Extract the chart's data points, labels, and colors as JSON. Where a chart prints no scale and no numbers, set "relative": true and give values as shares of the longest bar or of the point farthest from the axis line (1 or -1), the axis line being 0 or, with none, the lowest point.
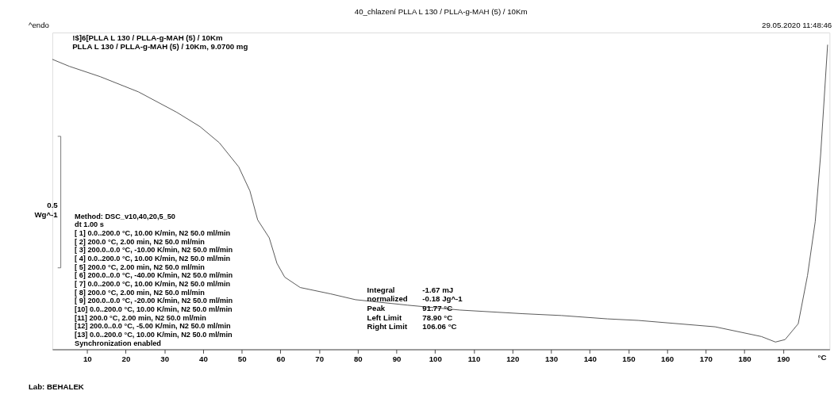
{
  "chart_data": {
    "type": "line",
    "title": "40_chlazení PLLA L 130 / PLLA-g-MAH (5) / 10Km",
    "ylabel": "^endo",
    "xlabel": "°C",
    "relative": true,
    "x": [
      1,
      5.4,
      13.4,
      23.3,
      33.2,
      39.2,
      44.2,
      49.2,
      52.1,
      54.1,
      57.1,
      59.1,
      61.1,
      65.1,
      73.0,
      79.4,
      92.9,
      106.4,
      122.7,
      132.7,
      144.6,
      152.5,
      172.4,
      184.4,
      188.0,
      190.5,
      193.9,
      196.3,
      198.3,
      199.7,
      201.5
    ],
    "series": [
      {
        "color": "#555555",
        "values": [
          0.952,
          0.929,
          0.895,
          0.845,
          0.778,
          0.731,
          0.678,
          0.599,
          0.52,
          0.425,
          0.366,
          0.282,
          0.237,
          0.203,
          0.182,
          0.163,
          0.145,
          0.129,
          0.117,
          0.111,
          0.1,
          0.095,
          0.074,
          0.042,
          0.024,
          0.032,
          0.084,
          0.242,
          0.419,
          0.639,
          1.0
        ]
      }
    ],
    "xlim": [
      1,
      202
    ],
    "xticks": [
      10,
      20,
      30,
      40,
      50,
      60,
      70,
      80,
      90,
      100,
      110,
      120,
      130,
      140,
      150,
      160,
      170,
      180,
      190
    ],
    "grid": false,
    "annotations": [
      "!$]6[PLLA L 130 / PLLA-g-MAH (5) / 10Km",
      "PLLA L 130 / PLLA-g-MAH (5) / 10Km, 9.0700 mg",
      "29.05.2020 11:48:46",
      "0.5\nWg^-1",
      "Method: DSC_v10,40,20,5_50\ndt 1.00 s\n[ 1] 0.0..200.0 °C, 10.00 K/min, N2 50.0 ml/min\n[ 2] 200.0 °C, 2.00 min, N2 50.0 ml/min\n[ 3] 200.0..0.0 °C, -10.00 K/min, N2 50.0 ml/min\n[ 4] 0.0..200.0 °C, 10.00 K/min, N2 50.0 ml/min\n[ 5] 200.0 °C, 2.00 min, N2 50.0 ml/min\n[ 6] 200.0..0.0 °C, -40.00 K/min, N2 50.0 ml/min\n[ 7] 0.0..200.0 °C, 10.00 K/min, N2 50.0 ml/min\n[ 8] 200.0 °C, 2.00 min, N2 50.0 ml/min\n[ 9] 200.0..0.0 °C, -20.00 K/min, N2 50.0 ml/min\n[10] 0.0..200.0 °C, 10.00 K/min, N2 50.0 ml/min\n[11] 200.0 °C, 2.00 min, N2 50.0 ml/min\n[12] 200.0..0.0 °C, -5.00 K/min, N2 50.0 ml/min\n[13] 0.0..200.0 °C, 10.00 K/min, N2 50.0 ml/min\nSynchronization enabled",
      "Integral\n  normalized\nPeak\nLeft Limit\nRight Limit",
      "-1.67 mJ\n-0.18 Jg^-1\n91.77 °C\n78.90 °C\n106.06 °C",
      "Lab: BEHALEK"
    ]
  }
}
